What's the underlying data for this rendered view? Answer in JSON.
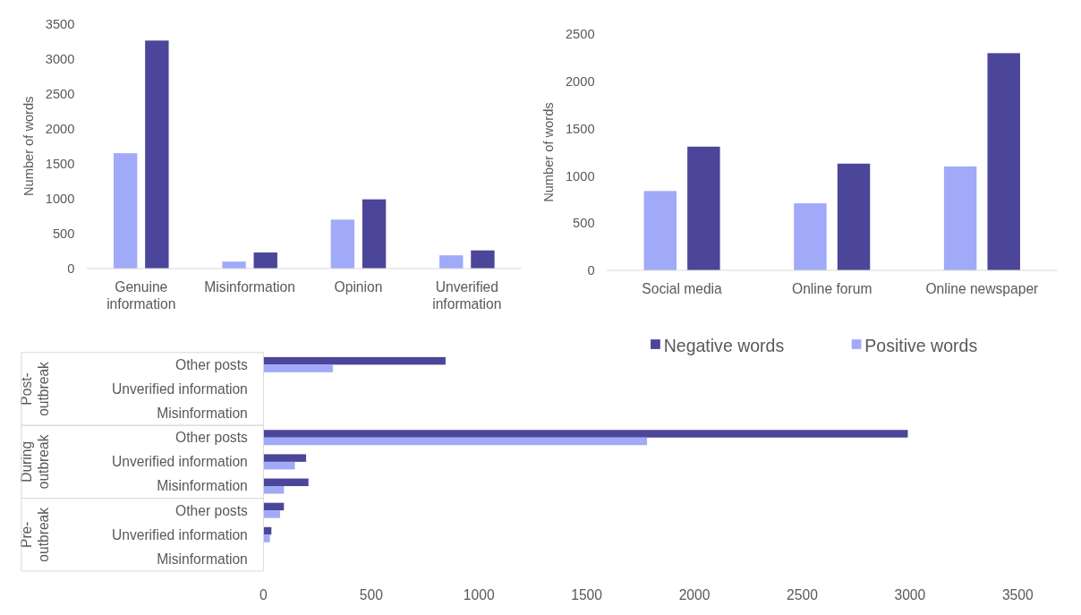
{
  "chart_data": [
    {
      "type": "bar",
      "categories": [
        "Genuine information",
        "Misinformation",
        "Opinion",
        "Unverified information"
      ],
      "ylabel": "Number of words",
      "ylim": [
        0,
        3500
      ],
      "yticks": [
        0,
        500,
        1000,
        1500,
        2000,
        2500,
        3000,
        3500
      ],
      "grid": false,
      "series": [
        {
          "color": "#a0aaf8",
          "values": [
            1650,
            100,
            700,
            190
          ]
        },
        {
          "color": "#4b4699",
          "values": [
            3260,
            230,
            990,
            260
          ]
        }
      ]
    },
    {
      "type": "bar",
      "categories": [
        "Social media",
        "Online forum",
        "Online newspaper"
      ],
      "ylabel": "Number of words",
      "ylim": [
        0,
        2500
      ],
      "yticks": [
        0,
        500,
        1000,
        1500,
        2000,
        2500
      ],
      "grid": false,
      "series": [
        {
          "color": "#a0aaf8",
          "values": [
            840,
            710,
            1100
          ]
        },
        {
          "color": "#4b4699",
          "values": [
            1310,
            1130,
            2300
          ]
        }
      ]
    },
    {
      "type": "bar",
      "orientation": "horizontal",
      "categories": [
        "Other posts",
        "Unverified information",
        "Misinformation",
        "Other posts",
        "Unverified information",
        "Misinformation",
        "Other posts",
        "Unverified information",
        "Misinformation"
      ],
      "annotations": [
        "Post-outbreak",
        "During outbreak",
        "Pre-outbreak"
      ],
      "xlim": [
        0,
        3500
      ],
      "xticks": [
        0,
        500,
        1000,
        1500,
        2000,
        2500,
        3000,
        3500
      ],
      "grid": false,
      "legend": "top right",
      "series": [
        {
          "name": "Negative words",
          "color": "#4b4699",
          "values": [
            845,
            null,
            null,
            2990,
            198,
            209,
            95,
            37,
            null
          ]
        },
        {
          "name": "Positive words",
          "color": "#a0aaf8",
          "values": [
            322,
            null,
            null,
            1780,
            146,
            95,
            77,
            30,
            null
          ]
        }
      ]
    }
  ]
}
